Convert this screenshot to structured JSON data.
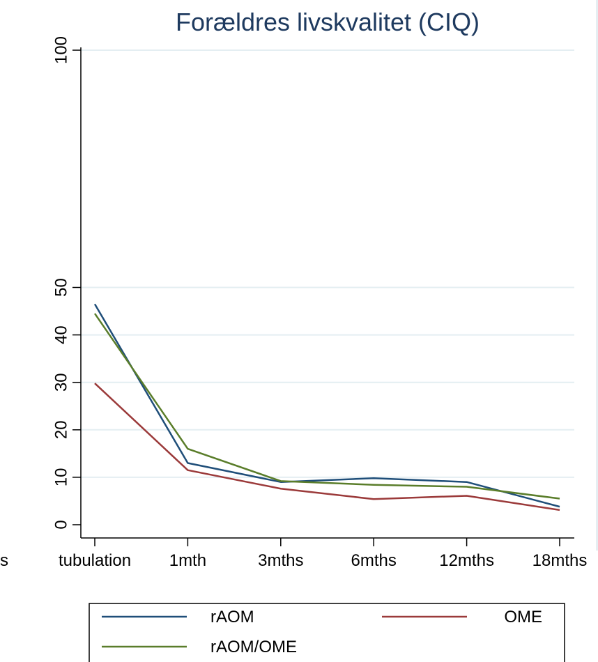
{
  "chart_data": {
    "type": "line",
    "title": "Forældres livskvalitet (CIQ)",
    "xlabel": "",
    "ylabel": "",
    "categories": [
      "tubulation",
      "1mth",
      "3mths",
      "6mths",
      "12mths",
      "18mths"
    ],
    "left_cut_label": "s",
    "y_ticks": [
      0,
      10,
      20,
      30,
      40,
      50,
      100
    ],
    "ylim": [
      0,
      100
    ],
    "grid": true,
    "legend_position": "bottom",
    "series": [
      {
        "name": "rAOM",
        "color": "#1f4e79",
        "values": [
          46.5,
          13,
          9,
          9.8,
          9,
          3.8
        ]
      },
      {
        "name": "OME",
        "color": "#9b3a3a",
        "values": [
          29.8,
          11.5,
          7.6,
          5.4,
          6.1,
          3.1
        ]
      },
      {
        "name": "rAOM/OME",
        "color": "#5a7d2a",
        "values": [
          44.5,
          16,
          9.2,
          8.4,
          8,
          5.5
        ]
      }
    ]
  }
}
